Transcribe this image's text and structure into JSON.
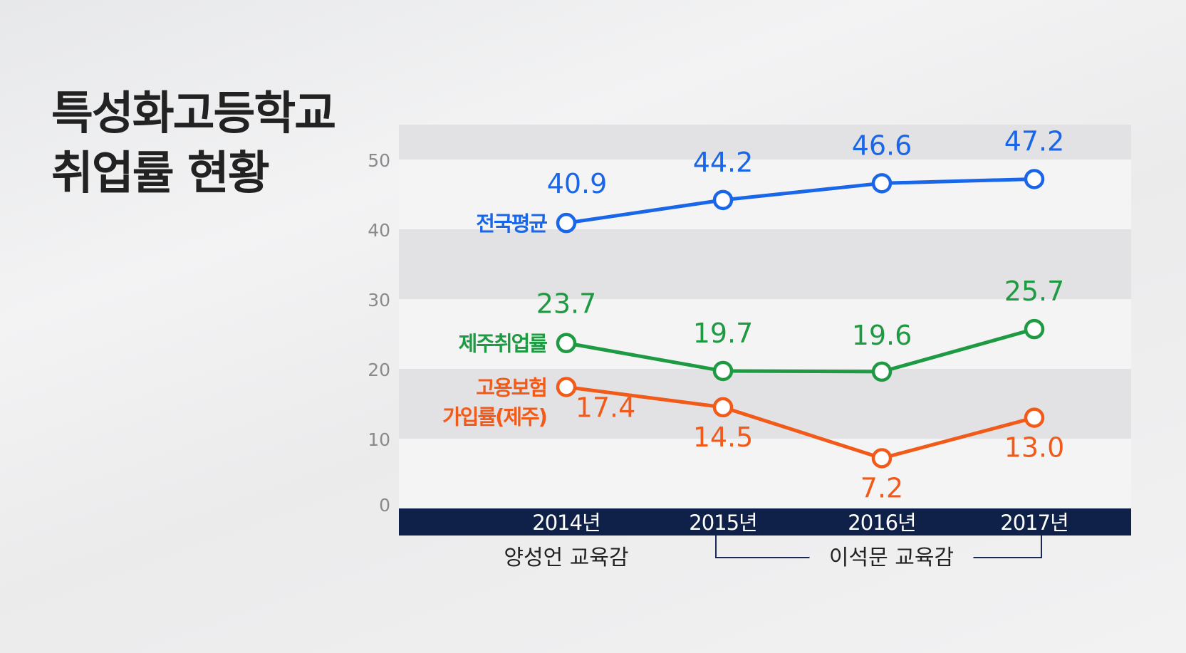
{
  "title": {
    "line1": "특성화고등학교",
    "line2": "취업률 현황"
  },
  "chart_data": {
    "type": "line",
    "categories": [
      "2014년",
      "2015년",
      "2016년",
      "2017년"
    ],
    "ylim": [
      0,
      55
    ],
    "yticks": [
      0,
      10,
      20,
      30,
      40,
      50
    ],
    "grid": "alternating horizontal bands",
    "series": [
      {
        "name": "전국평균",
        "values": [
          40.9,
          44.2,
          46.6,
          47.2
        ],
        "labels": [
          "40.9",
          "44.2",
          "46.6",
          "47.2"
        ],
        "color": "#1a66e8"
      },
      {
        "name": "제주취업률",
        "values": [
          23.7,
          19.7,
          19.6,
          25.7
        ],
        "labels": [
          "23.7",
          "19.7",
          "19.6",
          "25.7"
        ],
        "color": "#1e9a42"
      },
      {
        "name": "고용보험 가입률(제주)",
        "name_lines": [
          "고용보험",
          "가입률(제주)"
        ],
        "values": [
          17.4,
          14.5,
          7.2,
          13.0
        ],
        "labels": [
          "17.4",
          "14.5",
          "7.2",
          "13.0"
        ],
        "color": "#f25a1a"
      }
    ],
    "annotations": [
      {
        "text": "양성언 교육감",
        "span": [
          0,
          0
        ]
      },
      {
        "text": "이석문 교육감",
        "span": [
          1,
          3
        ]
      }
    ],
    "axis_band_color": "#0f2148"
  }
}
